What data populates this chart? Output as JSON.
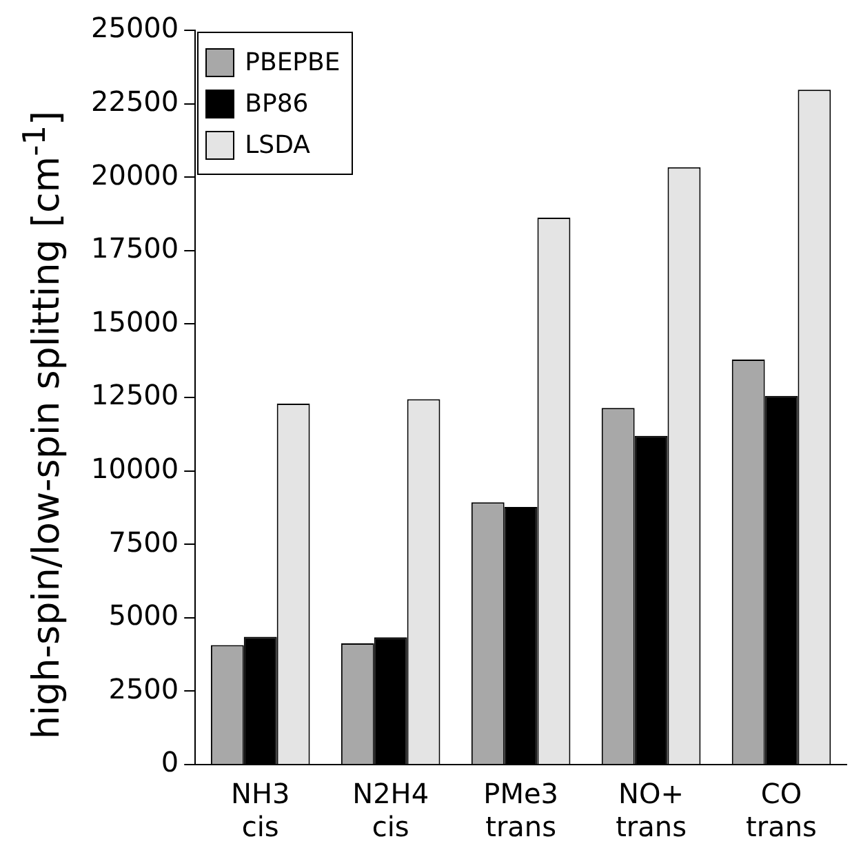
{
  "chart_data": {
    "type": "bar",
    "ylabel": "high-spin/low-spin splitting [cm$^{-1}$]",
    "categories": [
      "NH3 cis",
      "N2H4 cis",
      "PMe3 trans",
      "NO+ trans",
      "CO trans"
    ],
    "series": [
      {
        "name": "PBEPBE",
        "color": "#a8a8a8",
        "values": [
          4070,
          4130,
          8930,
          12140,
          13790
        ]
      },
      {
        "name": "BP86",
        "color": "#000000",
        "values": [
          4350,
          4330,
          8770,
          11190,
          12550
        ]
      },
      {
        "name": "LSDA",
        "color": "#e4e4e4",
        "values": [
          12290,
          12440,
          18620,
          20340,
          22980
        ]
      }
    ],
    "ylim": [
      0,
      25000
    ],
    "yticks": [
      0,
      2500,
      5000,
      7500,
      10000,
      12500,
      15000,
      17500,
      20000,
      22500,
      25000
    ],
    "grid": false,
    "legend": "top left"
  }
}
